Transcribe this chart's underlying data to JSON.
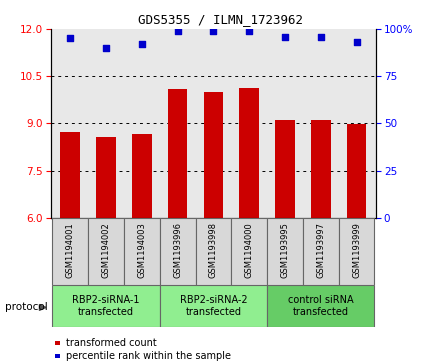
{
  "title": "GDS5355 / ILMN_1723962",
  "samples": [
    "GSM1194001",
    "GSM1194002",
    "GSM1194003",
    "GSM1193996",
    "GSM1193998",
    "GSM1194000",
    "GSM1193995",
    "GSM1193997",
    "GSM1193999"
  ],
  "bar_values": [
    8.72,
    8.58,
    8.65,
    10.08,
    10.0,
    10.13,
    9.12,
    9.12,
    8.97
  ],
  "dot_values": [
    95,
    90,
    92,
    99,
    99,
    99,
    96,
    96,
    93
  ],
  "ylim_left": [
    6,
    12
  ],
  "ylim_right": [
    0,
    100
  ],
  "yticks_left": [
    6,
    7.5,
    9,
    10.5,
    12
  ],
  "yticks_right": [
    0,
    25,
    50,
    75,
    100
  ],
  "bar_color": "#cc0000",
  "dot_color": "#0000cc",
  "plot_bg": "#e8e8e8",
  "sample_bg": "#d8d8d8",
  "groups": [
    {
      "label": "RBP2-siRNA-1\ntransfected",
      "indices": [
        0,
        1,
        2
      ],
      "color": "#90ee90"
    },
    {
      "label": "RBP2-siRNA-2\ntransfected",
      "indices": [
        3,
        4,
        5
      ],
      "color": "#90ee90"
    },
    {
      "label": "control siRNA\ntransfected",
      "indices": [
        6,
        7,
        8
      ],
      "color": "#66cc66"
    }
  ],
  "protocol_label": "protocol",
  "legend_items": [
    {
      "label": "transformed count",
      "color": "#cc0000"
    },
    {
      "label": "percentile rank within the sample",
      "color": "#0000cc"
    }
  ],
  "title_fontsize": 9,
  "tick_fontsize": 7.5,
  "sample_fontsize": 6,
  "group_fontsize": 7,
  "legend_fontsize": 7
}
